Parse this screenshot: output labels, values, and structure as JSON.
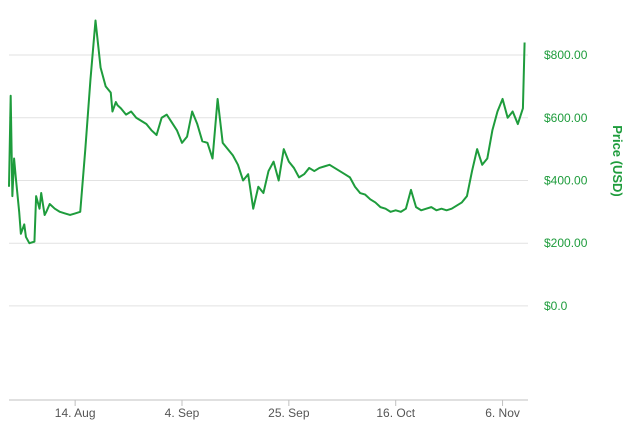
{
  "chart_data": {
    "type": "line",
    "title": "",
    "xlabel": "",
    "ylabel": "Price (USD)",
    "x_tick_labels": [
      "14. Aug",
      "4. Sep",
      "25. Sep",
      "16. Oct",
      "6. Nov"
    ],
    "y_tick_labels": [
      "$0.0",
      "$200.00",
      "$400.00",
      "$600.00",
      "$800.00"
    ],
    "y_ticks": [
      0,
      200,
      400,
      600,
      800
    ],
    "ylim": [
      -300,
      950
    ],
    "xlim": [
      "2017-08-01",
      "2017-11-11"
    ],
    "grid": true,
    "legend": "none",
    "line_color": "#1e9c3c",
    "series": [
      {
        "x": [
          "2017-08-01",
          "2017-08-01",
          "2017-08-01",
          "2017-08-02",
          "2017-08-02",
          "2017-08-03",
          "2017-08-03",
          "2017-08-04",
          "2017-08-04",
          "2017-08-05",
          "2017-08-06",
          "2017-08-06",
          "2017-08-07",
          "2017-08-07",
          "2017-08-08",
          "2017-08-08",
          "2017-08-09",
          "2017-08-10",
          "2017-08-11",
          "2017-08-12",
          "2017-08-13",
          "2017-08-14",
          "2017-08-15",
          "2017-08-16",
          "2017-08-17",
          "2017-08-18",
          "2017-08-19",
          "2017-08-20",
          "2017-08-21",
          "2017-08-21",
          "2017-08-22",
          "2017-08-22",
          "2017-08-23",
          "2017-08-24",
          "2017-08-25",
          "2017-08-26",
          "2017-08-27",
          "2017-08-28",
          "2017-08-29",
          "2017-08-30",
          "2017-08-31",
          "2017-09-01",
          "2017-09-02",
          "2017-09-03",
          "2017-09-04",
          "2017-09-05",
          "2017-09-06",
          "2017-09-07",
          "2017-09-08",
          "2017-09-09",
          "2017-09-10",
          "2017-09-11",
          "2017-09-12",
          "2017-09-13",
          "2017-09-14",
          "2017-09-15",
          "2017-09-16",
          "2017-09-17",
          "2017-09-18",
          "2017-09-19",
          "2017-09-20",
          "2017-09-21",
          "2017-09-22",
          "2017-09-23",
          "2017-09-24",
          "2017-09-25",
          "2017-09-26",
          "2017-09-27",
          "2017-09-28",
          "2017-09-29",
          "2017-09-30",
          "2017-10-01",
          "2017-10-02",
          "2017-10-03",
          "2017-10-04",
          "2017-10-05",
          "2017-10-06",
          "2017-10-07",
          "2017-10-08",
          "2017-10-09",
          "2017-10-10",
          "2017-10-11",
          "2017-10-12",
          "2017-10-13",
          "2017-10-14",
          "2017-10-15",
          "2017-10-16",
          "2017-10-17",
          "2017-10-18",
          "2017-10-19",
          "2017-10-20",
          "2017-10-21",
          "2017-10-22",
          "2017-10-23",
          "2017-10-24",
          "2017-10-25",
          "2017-10-26",
          "2017-10-27",
          "2017-10-28",
          "2017-10-29",
          "2017-10-30",
          "2017-10-31",
          "2017-11-01",
          "2017-11-02",
          "2017-11-03",
          "2017-11-04",
          "2017-11-05",
          "2017-11-06",
          "2017-11-07",
          "2017-11-08",
          "2017-11-09",
          "2017-11-10",
          "2017-11-10"
        ],
        "y": [
          380,
          670,
          350,
          470,
          410,
          300,
          230,
          260,
          220,
          200,
          205,
          350,
          310,
          360,
          290,
          300,
          325,
          310,
          300,
          295,
          290,
          295,
          300,
          500,
          720,
          910,
          760,
          700,
          680,
          620,
          650,
          640,
          630,
          610,
          620,
          600,
          590,
          580,
          560,
          545,
          600,
          610,
          585,
          560,
          520,
          540,
          620,
          580,
          525,
          520,
          470,
          660,
          520,
          500,
          480,
          450,
          400,
          420,
          310,
          380,
          360,
          430,
          460,
          400,
          500,
          460,
          440,
          410,
          420,
          440,
          430,
          440,
          445,
          450,
          440,
          430,
          420,
          410,
          380,
          360,
          355,
          340,
          330,
          315,
          310,
          300,
          305,
          300,
          310,
          370,
          315,
          305,
          310,
          315,
          305,
          310,
          305,
          310,
          320,
          330,
          350,
          430,
          500,
          450,
          470,
          560,
          620,
          660,
          600,
          620,
          580,
          630,
          840
        ],
        "values": [
          380,
          670,
          350,
          470,
          410,
          300,
          230,
          260,
          220,
          200,
          205,
          350,
          310,
          360,
          290,
          300,
          325,
          310,
          300,
          295,
          290,
          295,
          300,
          500,
          720,
          910,
          760,
          700,
          680,
          620,
          650,
          640,
          630,
          610,
          620,
          600,
          590,
          580,
          560,
          545,
          600,
          610,
          585,
          560,
          520,
          540,
          620,
          580,
          525,
          520,
          470,
          660,
          520,
          500,
          480,
          450,
          400,
          420,
          310,
          380,
          360,
          430,
          460,
          400,
          500,
          460,
          440,
          410,
          420,
          440,
          430,
          440,
          445,
          450,
          440,
          430,
          420,
          410,
          380,
          360,
          355,
          340,
          330,
          315,
          310,
          300,
          305,
          300,
          310,
          370,
          315,
          305,
          310,
          315,
          305,
          310,
          305,
          310,
          320,
          330,
          350,
          430,
          500,
          450,
          470,
          560,
          620,
          660,
          600,
          620,
          580,
          630,
          840
        ]
      }
    ]
  }
}
